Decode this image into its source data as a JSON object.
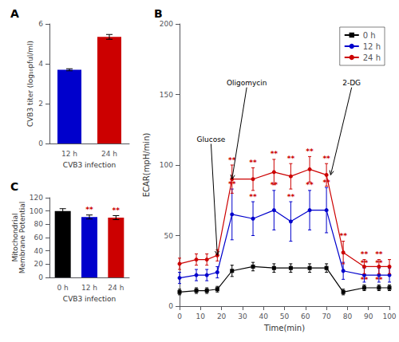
{
  "chart_data": [
    {
      "type": "bar",
      "title": "A",
      "categories": [
        "12 h",
        "24 h"
      ],
      "values": [
        3.7,
        5.35
      ],
      "errors": [
        0.05,
        0.12
      ],
      "colors": [
        "#0000cc",
        "#cc0000"
      ],
      "ylabel": "CVB3 titer (log₁₀pful/ml)",
      "xlabel": "CVB3 infection",
      "ylim": [
        0,
        6
      ],
      "yticks": [
        0,
        2,
        4,
        6
      ],
      "grid": false
    },
    {
      "type": "line",
      "title": "B",
      "x": [
        0,
        8,
        13,
        18,
        25,
        35,
        45,
        53,
        62,
        70,
        78,
        88,
        95,
        100
      ],
      "series": [
        {
          "name": "0 h",
          "color": "#000000",
          "marker": "square",
          "values": [
            10,
            11,
            11,
            12,
            25,
            28,
            27,
            27,
            27,
            27,
            10,
            13,
            13,
            13
          ],
          "errors": [
            2,
            2,
            2,
            2,
            4,
            3,
            3,
            3,
            3,
            3,
            2,
            2,
            2,
            2
          ],
          "annotations": [
            null,
            null,
            null,
            null,
            null,
            null,
            null,
            null,
            null,
            null,
            null,
            "**",
            "**",
            null
          ]
        },
        {
          "name": "12 h",
          "color": "#0000cc",
          "marker": "circle",
          "values": [
            20,
            22,
            22,
            24,
            65,
            62,
            68,
            60,
            68,
            68,
            25,
            22,
            22,
            22
          ],
          "errors": [
            4,
            4,
            4,
            4,
            18,
            12,
            14,
            14,
            14,
            16,
            6,
            5,
            5,
            5
          ],
          "annotations": [
            null,
            null,
            null,
            null,
            "**",
            "**",
            "**",
            "**",
            "**",
            "**",
            null,
            "**",
            "**",
            null
          ]
        },
        {
          "name": "24 h",
          "color": "#cc0000",
          "marker": "circle",
          "values": [
            30,
            33,
            33,
            36,
            90,
            90,
            95,
            92,
            97,
            93,
            38,
            28,
            28,
            28
          ],
          "errors": [
            4,
            4,
            4,
            4,
            10,
            8,
            9,
            9,
            9,
            8,
            8,
            5,
            5,
            5
          ],
          "annotations": [
            null,
            null,
            null,
            null,
            "**",
            "**",
            "**",
            "**",
            "**",
            "**",
            "**",
            "**",
            "**",
            null
          ]
        }
      ],
      "annotation_color": "#cc0000",
      "annotations": [
        {
          "text": "Glucose",
          "x": 15,
          "y": 115,
          "arrow_x": 18,
          "arrow_y": 36
        },
        {
          "text": "Oligomycin",
          "x": 32,
          "y": 155,
          "arrow_x": 25,
          "arrow_y": 90
        },
        {
          "text": "2-DG",
          "x": 82,
          "y": 155,
          "arrow_x": 72,
          "arrow_y": 93
        }
      ],
      "xlabel": "Time(min)",
      "ylabel": "ECAR(mpH/min)",
      "xlim": [
        0,
        100
      ],
      "xticks": [
        0,
        10,
        20,
        30,
        40,
        50,
        60,
        70,
        80,
        90,
        100
      ],
      "ylim": [
        0,
        200
      ],
      "yticks": [
        0,
        50,
        100,
        150,
        200
      ],
      "legend": "upper right",
      "grid": false
    },
    {
      "type": "bar",
      "title": "C",
      "categories": [
        "0 h",
        "12 h",
        "24 h"
      ],
      "values": [
        100,
        91,
        90
      ],
      "errors": [
        3.5,
        3.0,
        3.0
      ],
      "colors": [
        "#000000",
        "#0000cc",
        "#cc0000"
      ],
      "annotations": [
        null,
        "**",
        "**"
      ],
      "annotation_color": "#cc0000",
      "ylabel": "Mitochondrial\nMembrane Potential",
      "xlabel": "CVB3 infection",
      "ylim": [
        0,
        120
      ],
      "yticks": [
        0,
        20,
        40,
        60,
        80,
        100,
        120
      ],
      "grid": false
    }
  ]
}
